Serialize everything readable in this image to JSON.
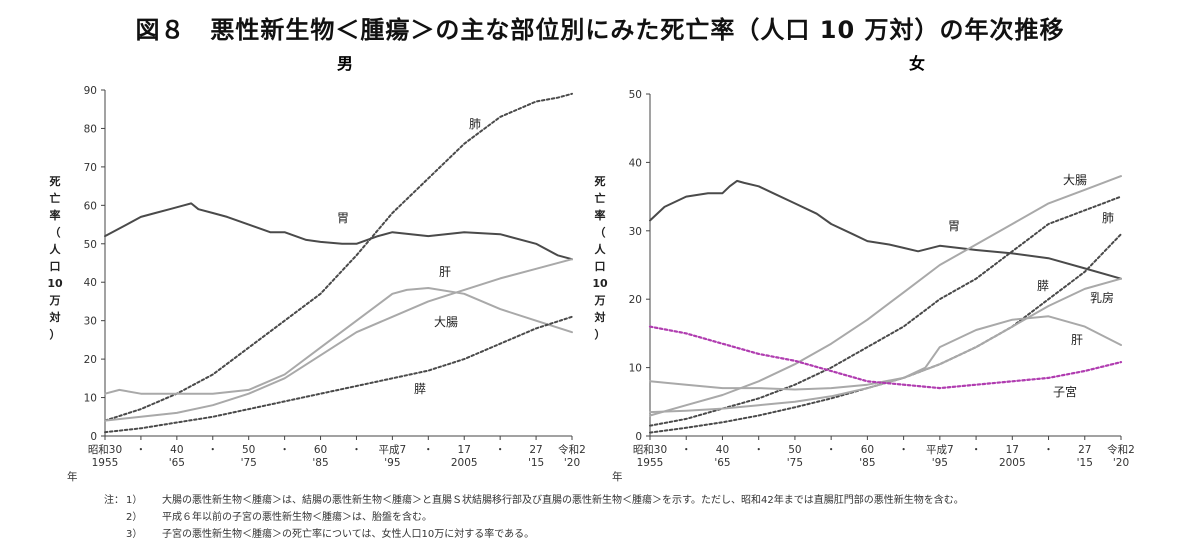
{
  "title": "図８　悪性新生物＜腫瘍＞の主な部位別にみた死亡率（人口 10 万対）の年次推移",
  "notes": {
    "head": "注：",
    "items": [
      {
        "num": "1）",
        "text": "大腸の悪性新生物＜腫瘍＞は、結腸の悪性新生物＜腫瘍＞と直腸Ｓ状結腸移行部及び直腸の悪性新生物＜腫瘍＞を示す。ただし、昭和42年までは直腸肛門部の悪性新生物を含む。"
      },
      {
        "num": "2）",
        "text": "平成６年以前の子宮の悪性新生物＜腫瘍＞は、胎盤を含む。"
      },
      {
        "num": "3）",
        "text": "子宮の悪性新生物＜腫瘍＞の死亡率については、女性人口10万に対する率である。"
      }
    ]
  },
  "colors": {
    "gray_dark": "#4a4a4a",
    "gray_light": "#a9a9a9",
    "purple": "#b03cb0"
  },
  "x_ticks": [
    {
      "x": 1955,
      "top": "昭和30",
      "bottom": "1955"
    },
    {
      "x": 1960,
      "top": "・",
      "bottom": ""
    },
    {
      "x": 1965,
      "top": "40",
      "bottom": "'65"
    },
    {
      "x": 1970,
      "top": "・",
      "bottom": ""
    },
    {
      "x": 1975,
      "top": "50",
      "bottom": "'75"
    },
    {
      "x": 1980,
      "top": "・",
      "bottom": ""
    },
    {
      "x": 1985,
      "top": "60",
      "bottom": "'85"
    },
    {
      "x": 1990,
      "top": "・",
      "bottom": ""
    },
    {
      "x": 1995,
      "top": "平成7",
      "bottom": "'95"
    },
    {
      "x": 2000,
      "top": "・",
      "bottom": ""
    },
    {
      "x": 2005,
      "top": "17",
      "bottom": "2005"
    },
    {
      "x": 2010,
      "top": "・",
      "bottom": ""
    },
    {
      "x": 2015,
      "top": "27",
      "bottom": "'15"
    },
    {
      "x": 2020,
      "top": "令和2",
      "bottom": "'20"
    }
  ],
  "x_axis_label": "年",
  "y_label_chars": [
    "死",
    "亡",
    "率",
    "（",
    "人",
    "口",
    "10",
    "万",
    "対",
    "）"
  ],
  "chart_data": [
    {
      "type": "line",
      "title": "男",
      "xlim": [
        1955,
        2020
      ],
      "ylim": [
        0,
        90
      ],
      "yticks": [
        0,
        10,
        20,
        30,
        40,
        50,
        60,
        70,
        80,
        90
      ],
      "series": [
        {
          "name": "胃",
          "style": "solid-dark",
          "x": [
            1955,
            1958,
            1960,
            1962,
            1964,
            1966,
            1967,
            1968,
            1970,
            1972,
            1975,
            1978,
            1980,
            1983,
            1985,
            1988,
            1990,
            1993,
            1995,
            2000,
            2005,
            2010,
            2015,
            2018,
            2020
          ],
          "y": [
            52,
            55,
            57,
            58,
            59,
            60,
            60.5,
            59,
            58,
            57,
            55,
            53,
            53,
            51,
            50.5,
            50,
            50,
            52,
            53,
            52,
            53,
            52.5,
            50,
            47,
            46
          ]
        },
        {
          "name": "肺",
          "style": "dotted-dark",
          "x": [
            1955,
            1960,
            1965,
            1970,
            1975,
            1980,
            1985,
            1990,
            1995,
            2000,
            2005,
            2010,
            2015,
            2018,
            2020
          ],
          "y": [
            4,
            7,
            11,
            16,
            23,
            30,
            37,
            47,
            58,
            67,
            76,
            83,
            87,
            88,
            89
          ]
        },
        {
          "name": "肝",
          "style": "solid-light",
          "x": [
            1955,
            1957,
            1960,
            1965,
            1970,
            1975,
            1980,
            1985,
            1990,
            1995,
            1997,
            2000,
            2005,
            2010,
            2015,
            2020
          ],
          "y": [
            11,
            12,
            11,
            11,
            11,
            12,
            16,
            23,
            30,
            37,
            38,
            38.5,
            37,
            33,
            30,
            27
          ]
        },
        {
          "name": "大腸",
          "style": "solid-light",
          "x": [
            1955,
            1960,
            1965,
            1970,
            1975,
            1980,
            1985,
            1990,
            1995,
            2000,
            2005,
            2010,
            2015,
            2020
          ],
          "y": [
            4,
            5,
            6,
            8,
            11,
            15,
            21,
            27,
            31,
            35,
            38,
            41,
            43.5,
            46
          ]
        },
        {
          "name": "膵",
          "style": "dotted-dark",
          "x": [
            1955,
            1960,
            1965,
            1970,
            1975,
            1980,
            1985,
            1990,
            1995,
            2000,
            2005,
            2010,
            2015,
            2020
          ],
          "y": [
            1,
            2,
            3.5,
            5,
            7,
            9,
            11,
            13,
            15,
            17,
            20,
            24,
            28,
            31
          ]
        }
      ]
    },
    {
      "type": "line",
      "title": "女",
      "xlim": [
        1955,
        2020
      ],
      "ylim": [
        0,
        50
      ],
      "yticks": [
        0,
        10,
        20,
        30,
        40,
        50
      ],
      "series": [
        {
          "name": "胃",
          "style": "solid-dark",
          "x": [
            1955,
            1957,
            1960,
            1963,
            1965,
            1966,
            1967,
            1968,
            1970,
            1972,
            1975,
            1978,
            1980,
            1983,
            1985,
            1988,
            1990,
            1992,
            1995,
            2000,
            2005,
            2010,
            2015,
            2020
          ],
          "y": [
            31.5,
            33.5,
            35,
            35.5,
            35.5,
            36.5,
            37.3,
            37,
            36.5,
            35.5,
            34,
            32.5,
            31,
            29.5,
            28.5,
            28,
            27.5,
            27,
            27.8,
            27.2,
            26.7,
            26,
            24.5,
            23
          ]
        },
        {
          "name": "大腸",
          "style": "solid-light",
          "x": [
            1955,
            1960,
            1965,
            1970,
            1975,
            1980,
            1985,
            1990,
            1995,
            2000,
            2005,
            2010,
            2015,
            2020
          ],
          "y": [
            3,
            4.5,
            6,
            8,
            10.5,
            13.5,
            17,
            21,
            25,
            28,
            31,
            34,
            36,
            38
          ]
        },
        {
          "name": "肺",
          "style": "dotted-dark",
          "x": [
            1955,
            1960,
            1965,
            1970,
            1975,
            1980,
            1985,
            1990,
            1995,
            2000,
            2005,
            2010,
            2015,
            2020
          ],
          "y": [
            1.5,
            2.5,
            4,
            5.5,
            7.5,
            10,
            13,
            16,
            20,
            23,
            27,
            31,
            33,
            35
          ]
        },
        {
          "name": "膵",
          "style": "dotted-dark",
          "x": [
            1955,
            1960,
            1965,
            1970,
            1975,
            1980,
            1985,
            1990,
            1995,
            2000,
            2005,
            2010,
            2015,
            2020
          ],
          "y": [
            0.5,
            1.2,
            2,
            3,
            4.2,
            5.5,
            7,
            8.5,
            10.5,
            13,
            16,
            20,
            24,
            29.5
          ]
        },
        {
          "name": "乳房",
          "style": "solid-light",
          "x": [
            1955,
            1960,
            1965,
            1970,
            1975,
            1980,
            1985,
            1990,
            1995,
            2000,
            2005,
            2010,
            2015,
            2020
          ],
          "y": [
            3.5,
            3.7,
            4,
            4.5,
            5,
            5.8,
            7,
            8.5,
            10.5,
            13,
            16,
            19,
            21.5,
            23
          ]
        },
        {
          "name": "肝",
          "style": "solid-light",
          "x": [
            1955,
            1960,
            1965,
            1970,
            1975,
            1980,
            1985,
            1990,
            1993,
            1995,
            2000,
            2005,
            2010,
            2015,
            2020
          ],
          "y": [
            8,
            7.5,
            7,
            7,
            6.8,
            7,
            7.5,
            8.5,
            10,
            13,
            15.5,
            17,
            17.5,
            16,
            13.3
          ]
        },
        {
          "name": "子宮",
          "style": "dotted-purple",
          "x": [
            1955,
            1960,
            1965,
            1970,
            1975,
            1980,
            1985,
            1990,
            1995,
            2000,
            2005,
            2010,
            2015,
            2020
          ],
          "y": [
            16,
            15,
            13.5,
            12,
            11,
            9.5,
            8,
            7.5,
            7,
            7.5,
            8,
            8.5,
            9.5,
            10.8
          ]
        }
      ]
    }
  ]
}
